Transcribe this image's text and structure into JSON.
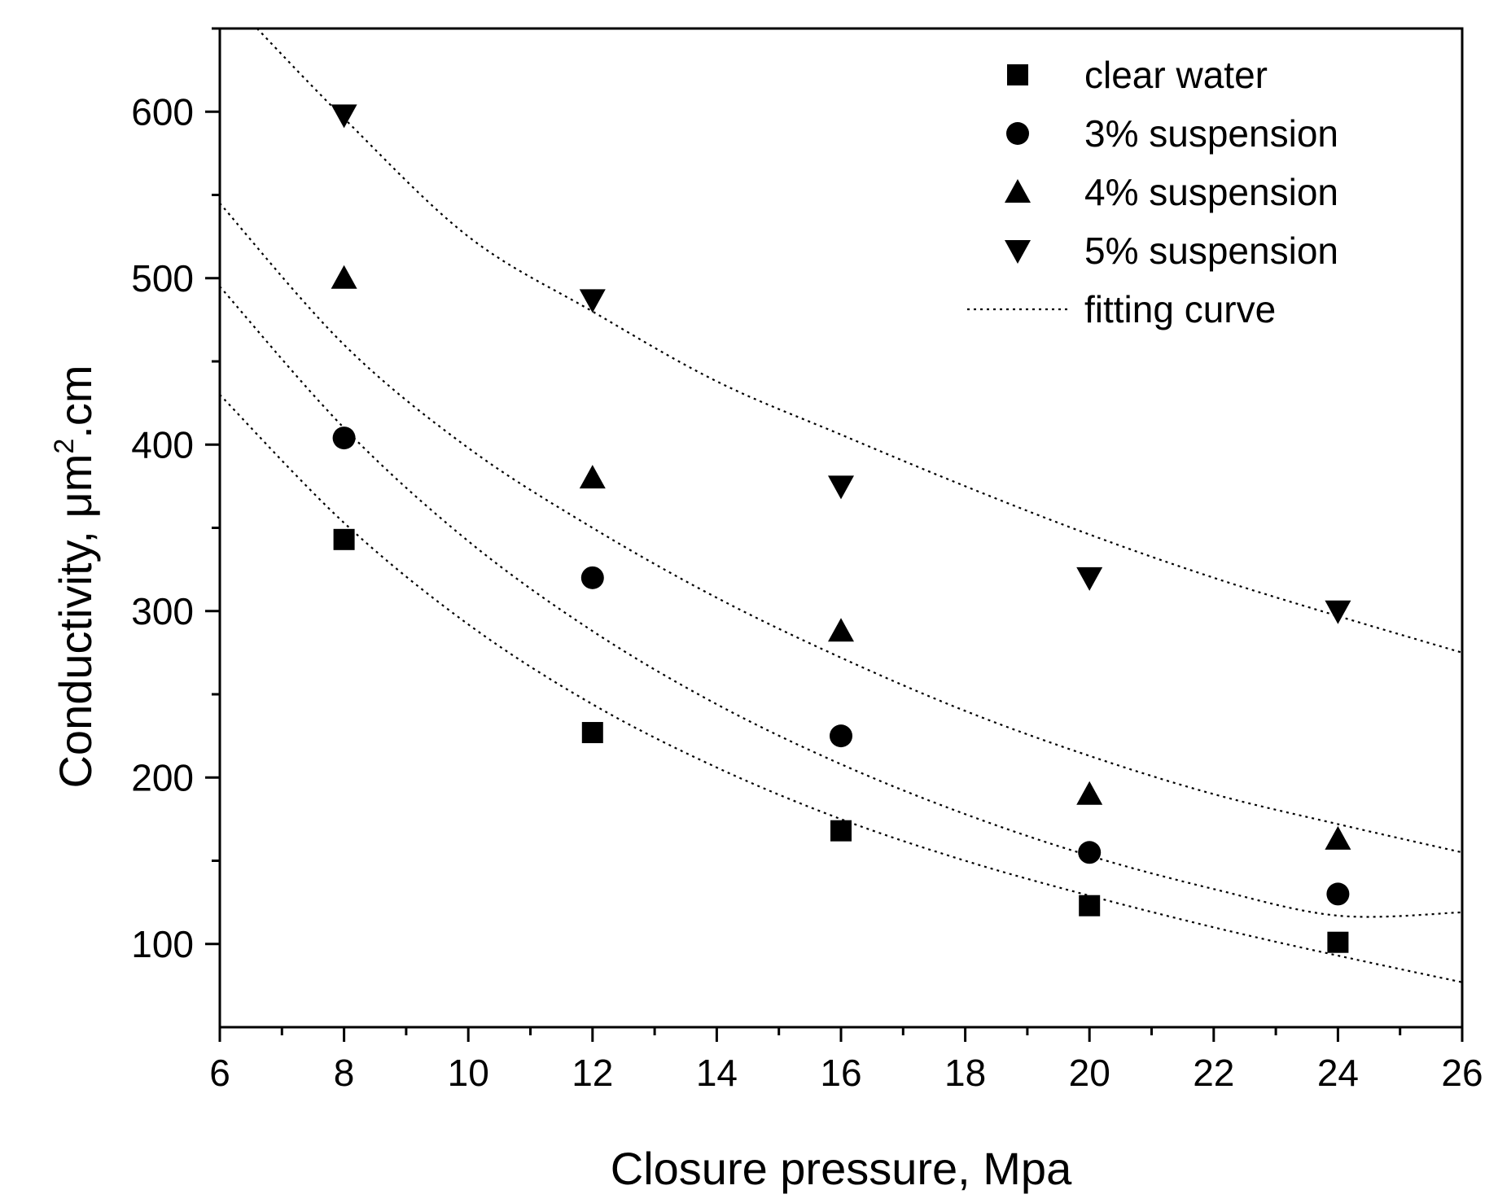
{
  "chart_data": {
    "type": "scatter",
    "title": "",
    "xlabel": "Closure pressure, Mpa",
    "ylabel": {
      "main": "Conductivity, μm",
      "sup": "2",
      "tail": ".cm"
    },
    "xlim": [
      6,
      26
    ],
    "ylim": [
      50,
      650
    ],
    "x_ticks": [
      6,
      8,
      10,
      12,
      14,
      16,
      18,
      20,
      22,
      24,
      26
    ],
    "y_ticks": [
      100,
      200,
      300,
      400,
      500,
      600
    ],
    "grid": false,
    "legend_position": "top-right",
    "series": [
      {
        "name": "clear water",
        "marker": "square",
        "x": [
          8,
          12,
          16,
          20,
          24
        ],
        "y": [
          343,
          227,
          168,
          123,
          101
        ]
      },
      {
        "name": "3% suspension",
        "marker": "circle",
        "x": [
          8,
          12,
          16,
          20,
          24
        ],
        "y": [
          404,
          320,
          225,
          155,
          130
        ]
      },
      {
        "name": "4% suspension",
        "marker": "triangle-up",
        "x": [
          8,
          12,
          16,
          20,
          24
        ],
        "y": [
          500,
          380,
          288,
          190,
          163
        ]
      },
      {
        "name": "5% suspension",
        "marker": "triangle-down",
        "x": [
          8,
          12,
          16,
          20,
          24
        ],
        "y": [
          598,
          487,
          375,
          320,
          300
        ]
      }
    ],
    "fitting_curve": {
      "name": "fitting curve",
      "style": "dotted",
      "curves": [
        {
          "x": [
            6,
            8,
            10,
            12,
            14,
            16,
            18,
            20,
            22,
            24,
            26
          ],
          "y": [
            430,
            353,
            292,
            244,
            206,
            175,
            150,
            129,
            110,
            93,
            77
          ]
        },
        {
          "x": [
            6,
            8,
            10,
            12,
            14,
            16,
            18,
            20,
            22,
            24,
            26
          ],
          "y": [
            495,
            410,
            342,
            288,
            244,
            208,
            178,
            153,
            133,
            117,
            119
          ]
        },
        {
          "x": [
            6,
            8,
            10,
            12,
            14,
            16,
            18,
            20,
            22,
            24,
            26
          ],
          "y": [
            545,
            460,
            398,
            350,
            308,
            272,
            240,
            213,
            190,
            172,
            155
          ]
        },
        {
          "x": [
            6.6,
            8,
            10,
            12,
            14,
            16,
            18,
            20,
            22,
            24,
            26
          ],
          "y": [
            650,
            596,
            525,
            480,
            438,
            406,
            375,
            346,
            320,
            297,
            275
          ]
        }
      ]
    }
  }
}
